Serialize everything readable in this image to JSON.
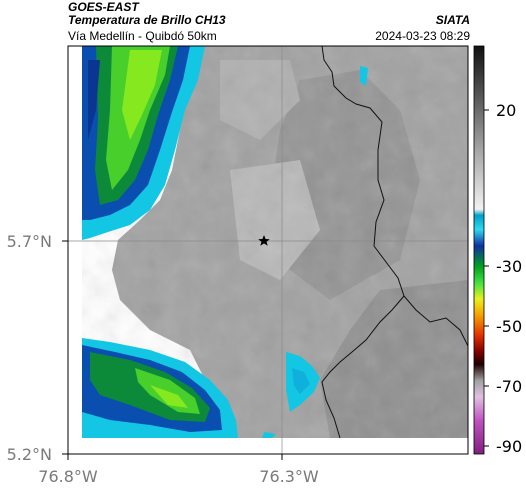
{
  "header": {
    "satellite": "GOES-EAST",
    "product": "Temperatura de Brillo CH13",
    "subtitle": "Vía Medellín - Quibdó 50km",
    "agency": "SIATA",
    "timestamp": "2024-03-23 08:29"
  },
  "map": {
    "lat_labels": [
      "5.7°N",
      "5.2°N"
    ],
    "lon_labels": [
      "76.8°W",
      "76.3°W"
    ],
    "marker": "star-marker"
  },
  "colorbar": {
    "labels": [
      "20",
      "-30",
      "-50",
      "-70",
      "-90"
    ]
  },
  "colors": {
    "cloud_cold_green": "#7de01e",
    "cloud_cyan": "#10c8e8",
    "cloud_blue": "#1040b0",
    "ground_gray": "#8c8c8c",
    "cloud_white": "#f4f4f4"
  }
}
